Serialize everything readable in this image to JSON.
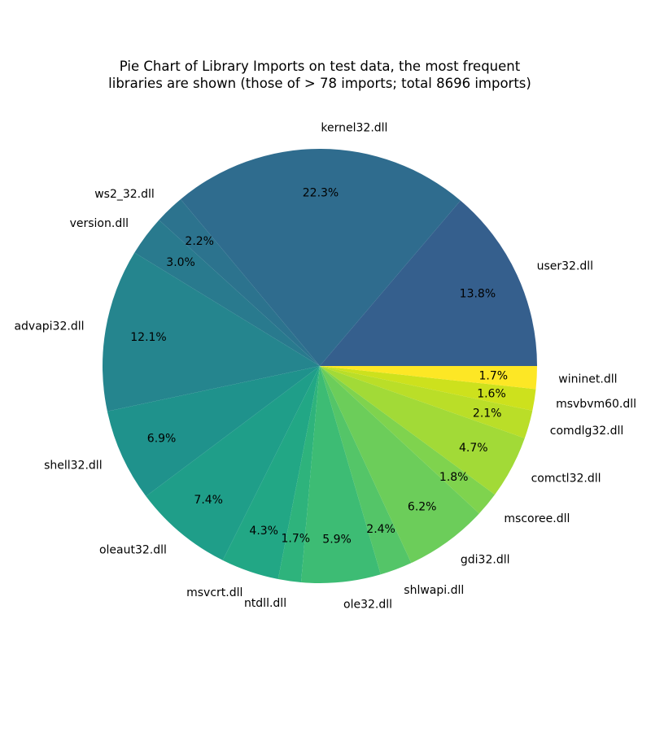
{
  "chart_data": {
    "type": "pie",
    "title": "Pie Chart of Library Imports on test data, the most frequent",
    "subtitle": "libraries are shown (those of > 78 imports; total 8696 imports)",
    "start_angle": 0,
    "direction": "counterclockwise",
    "slices": [
      {
        "label": "user32.dll",
        "percent": 13.8,
        "pct_label": "13.8%",
        "color": "#355f8d"
      },
      {
        "label": "kernel32.dll",
        "percent": 22.3,
        "pct_label": "22.3%",
        "color": "#2f6c8e"
      },
      {
        "label": "ws2_32.dll",
        "percent": 2.2,
        "pct_label": "2.2%",
        "color": "#2c738e"
      },
      {
        "label": "version.dll",
        "percent": 3.0,
        "pct_label": "3.0%",
        "color": "#297a8e"
      },
      {
        "label": "advapi32.dll",
        "percent": 12.1,
        "pct_label": "12.1%",
        "color": "#25858e"
      },
      {
        "label": "shell32.dll",
        "percent": 6.9,
        "pct_label": "6.9%",
        "color": "#1f928c"
      },
      {
        "label": "oleaut32.dll",
        "percent": 7.4,
        "pct_label": "7.4%",
        "color": "#1f9e89"
      },
      {
        "label": "msvcrt.dll",
        "percent": 4.3,
        "pct_label": "4.3%",
        "color": "#22a785"
      },
      {
        "label": "ntdll.dll",
        "percent": 1.7,
        "pct_label": "1.7%",
        "color": "#2eb37c"
      },
      {
        "label": "ole32.dll",
        "percent": 5.9,
        "pct_label": "5.9%",
        "color": "#3dbc74"
      },
      {
        "label": "shlwapi.dll",
        "percent": 2.4,
        "pct_label": "2.4%",
        "color": "#54c568"
      },
      {
        "label": "gdi32.dll",
        "percent": 6.2,
        "pct_label": "6.2%",
        "color": "#6ccd5a"
      },
      {
        "label": "mscoree.dll",
        "percent": 1.8,
        "pct_label": "1.8%",
        "color": "#7fd34e"
      },
      {
        "label": "comctl32.dll",
        "percent": 4.7,
        "pct_label": "4.7%",
        "color": "#a2da37"
      },
      {
        "label": "comdlg32.dll",
        "percent": 2.1,
        "pct_label": "2.1%",
        "color": "#bade28"
      },
      {
        "label": "msvbvm60.dll",
        "percent": 1.6,
        "pct_label": "1.6%",
        "color": "#cde11d"
      },
      {
        "label": "wininet.dll",
        "percent": 1.7,
        "pct_label": "1.7%",
        "color": "#fde725"
      }
    ]
  }
}
